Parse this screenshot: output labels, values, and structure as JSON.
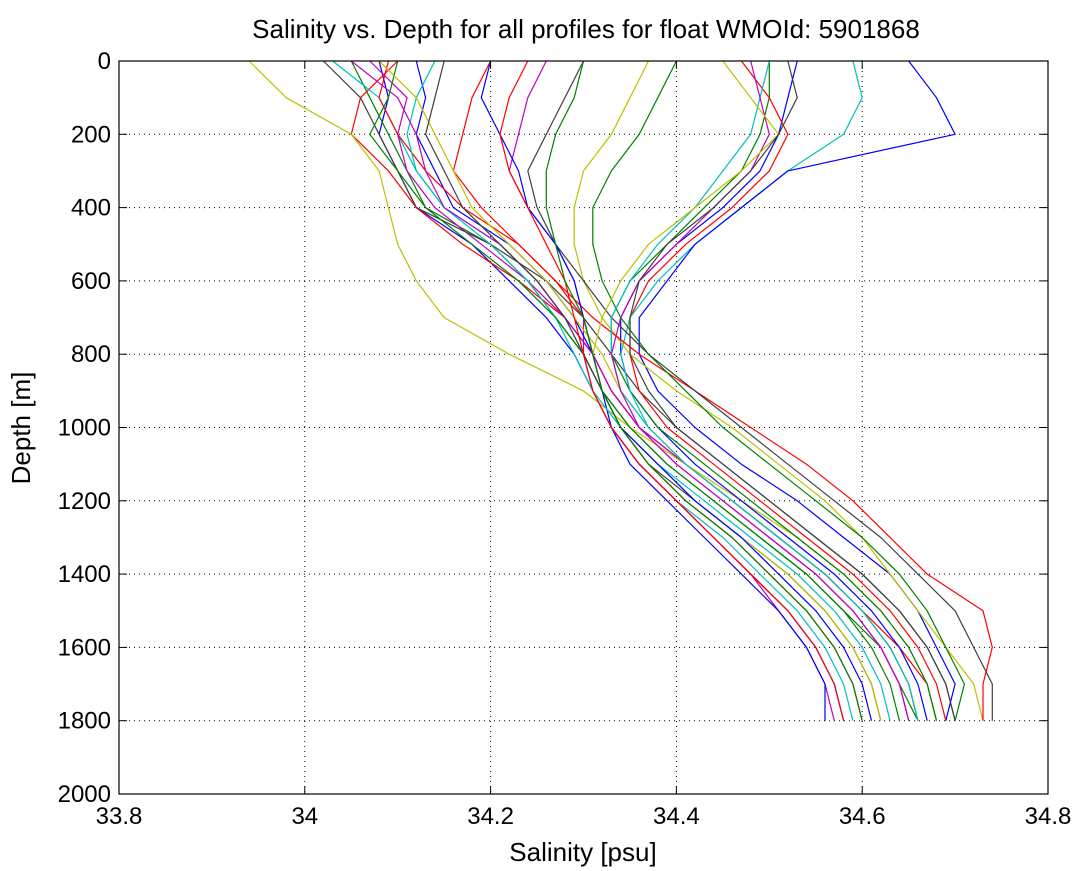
{
  "chart_data": {
    "type": "line",
    "title": "Salinity vs. Depth for all profiles for float WMOId: 5901868",
    "xlabel": "Salinity [psu]",
    "ylabel": "Depth [m]",
    "xlim": [
      33.8,
      34.8
    ],
    "ylim": [
      0,
      2000
    ],
    "y_reversed": true,
    "grid": true,
    "xticks": [
      33.8,
      34,
      34.2,
      34.4,
      34.6,
      34.8
    ],
    "xtick_labels": [
      "33.8",
      "34",
      "34.2",
      "34.4",
      "34.6",
      "34.8"
    ],
    "yticks": [
      0,
      200,
      400,
      600,
      800,
      1000,
      1200,
      1400,
      1600,
      1800,
      2000
    ],
    "ytick_labels": [
      "0",
      "200",
      "400",
      "600",
      "800",
      "1000",
      "1200",
      "1400",
      "1600",
      "1800",
      "2000"
    ],
    "depth_levels": [
      0,
      100,
      200,
      300,
      400,
      500,
      600,
      700,
      800,
      900,
      1000,
      1100,
      1200,
      1300,
      1400,
      1500,
      1600,
      1700,
      1800
    ],
    "series": [
      {
        "color": "#0000ff",
        "salinity": [
          34.08,
          34.09,
          34.08,
          34.1,
          34.12,
          34.18,
          34.22,
          34.26,
          34.29,
          34.31,
          34.33,
          34.36,
          34.4,
          34.44,
          34.48,
          34.52,
          34.55,
          34.57,
          34.58
        ]
      },
      {
        "color": "#008000",
        "salinity": [
          34.05,
          34.07,
          34.09,
          34.11,
          34.13,
          34.2,
          34.24,
          34.27,
          34.3,
          34.32,
          34.35,
          34.39,
          34.44,
          34.49,
          34.54,
          34.58,
          34.62,
          34.64,
          34.66
        ]
      },
      {
        "color": "#ff0000",
        "salinity": [
          34.1,
          34.06,
          34.05,
          34.09,
          34.12,
          34.17,
          34.23,
          34.28,
          34.31,
          34.33,
          34.36,
          34.41,
          34.46,
          34.51,
          34.56,
          34.6,
          34.64,
          34.67,
          34.68
        ]
      },
      {
        "color": "#00bfbf",
        "salinity": [
          34.03,
          34.08,
          34.1,
          34.12,
          34.15,
          34.21,
          34.25,
          34.28,
          34.3,
          34.31,
          34.33,
          34.36,
          34.4,
          34.45,
          34.49,
          34.53,
          34.56,
          34.58,
          34.59
        ]
      },
      {
        "color": "#bf00bf",
        "salinity": [
          34.07,
          34.11,
          34.1,
          34.11,
          34.14,
          34.19,
          34.24,
          34.28,
          34.31,
          34.33,
          34.36,
          34.4,
          34.45,
          34.5,
          34.55,
          34.59,
          34.62,
          34.64,
          34.65
        ]
      },
      {
        "color": "#bfbf00",
        "salinity": [
          33.94,
          33.98,
          34.05,
          34.08,
          34.09,
          34.1,
          34.12,
          34.15,
          34.22,
          34.3,
          34.35,
          34.41,
          34.47,
          34.53,
          34.58,
          34.62,
          34.65,
          34.67,
          34.68
        ]
      },
      {
        "color": "#404040",
        "salinity": [
          34.02,
          34.06,
          34.08,
          34.1,
          34.12,
          34.2,
          34.26,
          34.3,
          34.33,
          34.36,
          34.4,
          34.45,
          34.5,
          34.55,
          34.6,
          34.64,
          34.67,
          34.69,
          34.7
        ]
      },
      {
        "color": "#0000ff",
        "salinity": [
          34.53,
          34.52,
          34.51,
          34.49,
          34.45,
          34.4,
          34.36,
          34.34,
          34.34,
          34.35,
          34.38,
          34.42,
          34.47,
          34.52,
          34.57,
          34.61,
          34.64,
          34.66,
          34.67
        ]
      },
      {
        "color": "#008000",
        "salinity": [
          34.5,
          34.5,
          34.49,
          34.47,
          34.43,
          34.39,
          34.35,
          34.33,
          34.33,
          34.35,
          34.38,
          34.43,
          34.48,
          34.53,
          34.58,
          34.62,
          34.65,
          34.67,
          34.68
        ]
      },
      {
        "color": "#ff0000",
        "salinity": [
          34.47,
          34.5,
          34.52,
          34.5,
          34.46,
          34.41,
          34.37,
          34.35,
          34.35,
          34.36,
          34.39,
          34.44,
          34.49,
          34.54,
          34.59,
          34.63,
          34.66,
          34.68,
          34.69
        ]
      },
      {
        "color": "#00bfbf",
        "salinity": [
          34.59,
          34.6,
          34.58,
          34.52,
          34.47,
          34.42,
          34.38,
          34.35,
          34.34,
          34.35,
          34.37,
          34.41,
          34.46,
          34.51,
          34.56,
          34.6,
          34.63,
          34.65,
          34.66
        ]
      },
      {
        "color": "#0000ff",
        "salinity": [
          34.65,
          34.68,
          34.7,
          34.52,
          34.47,
          34.42,
          34.39,
          34.36,
          34.36,
          34.38,
          34.42,
          34.47,
          34.53,
          34.58,
          34.63,
          34.66,
          34.68,
          34.7,
          34.69
        ]
      },
      {
        "color": "#bf00bf",
        "salinity": [
          34.26,
          34.24,
          34.23,
          34.22,
          34.24,
          34.27,
          34.29,
          34.3,
          34.3,
          34.31,
          34.33,
          34.36,
          34.4,
          34.44,
          34.48,
          34.51,
          34.54,
          34.56,
          34.57
        ]
      },
      {
        "color": "#bfbf00",
        "salinity": [
          34.37,
          34.35,
          34.33,
          34.3,
          34.29,
          34.29,
          34.3,
          34.32,
          34.35,
          34.4,
          34.46,
          34.51,
          34.56,
          34.6,
          34.63,
          34.66,
          34.69,
          34.72,
          34.73
        ]
      },
      {
        "color": "#ff0000",
        "salinity": [
          34.2,
          34.18,
          34.17,
          34.16,
          34.19,
          34.23,
          34.27,
          34.31,
          34.36,
          34.42,
          34.48,
          34.54,
          34.59,
          34.63,
          34.67,
          34.73,
          34.74,
          34.73,
          34.73
        ]
      },
      {
        "color": "#404040",
        "salinity": [
          34.3,
          34.28,
          34.26,
          34.24,
          34.25,
          34.27,
          34.3,
          34.33,
          34.37,
          34.42,
          34.47,
          34.52,
          34.57,
          34.62,
          34.66,
          34.7,
          34.72,
          34.74,
          34.74
        ]
      },
      {
        "color": "#008000",
        "salinity": [
          34.4,
          34.38,
          34.36,
          34.33,
          34.31,
          34.31,
          34.32,
          34.34,
          34.37,
          34.41,
          34.45,
          34.5,
          34.55,
          34.6,
          34.64,
          34.67,
          34.69,
          34.71,
          34.7
        ]
      },
      {
        "color": "#0000ff",
        "salinity": [
          34.12,
          34.13,
          34.12,
          34.14,
          34.16,
          34.22,
          34.26,
          34.29,
          34.31,
          34.32,
          34.33,
          34.35,
          34.39,
          34.43,
          34.47,
          34.51,
          34.54,
          34.56,
          34.56
        ]
      },
      {
        "color": "#ff0000",
        "salinity": [
          34.09,
          34.08,
          34.1,
          34.13,
          34.17,
          34.23,
          34.27,
          34.3,
          34.31,
          34.32,
          34.34,
          34.37,
          34.41,
          34.46,
          34.5,
          34.54,
          34.57,
          34.59,
          34.6
        ]
      },
      {
        "color": "#00bfbf",
        "salinity": [
          34.14,
          34.12,
          34.11,
          34.12,
          34.15,
          34.2,
          34.24,
          34.27,
          34.29,
          34.31,
          34.34,
          34.38,
          34.43,
          34.48,
          34.53,
          34.57,
          34.6,
          34.62,
          34.63
        ]
      },
      {
        "color": "#bf00bf",
        "salinity": [
          34.05,
          34.1,
          34.12,
          34.13,
          34.15,
          34.21,
          34.25,
          34.28,
          34.31,
          34.33,
          34.36,
          34.41,
          34.46,
          34.51,
          34.56,
          34.6,
          34.63,
          34.65,
          34.66
        ]
      },
      {
        "color": "#008000",
        "salinity": [
          34.1,
          34.09,
          34.07,
          34.1,
          34.13,
          34.18,
          34.23,
          34.27,
          34.3,
          34.32,
          34.35,
          34.39,
          34.44,
          34.49,
          34.54,
          34.58,
          34.61,
          34.63,
          34.64
        ]
      },
      {
        "color": "#bfbf00",
        "salinity": [
          34.08,
          34.12,
          34.14,
          34.16,
          34.18,
          34.22,
          34.26,
          34.29,
          34.32,
          34.34,
          34.37,
          34.41,
          34.46,
          34.51,
          34.56,
          34.6,
          34.63,
          34.65,
          34.66
        ]
      },
      {
        "color": "#404040",
        "salinity": [
          34.15,
          34.14,
          34.13,
          34.15,
          34.17,
          34.21,
          34.25,
          34.28,
          34.3,
          34.32,
          34.34,
          34.37,
          34.42,
          34.47,
          34.52,
          34.56,
          34.59,
          34.61,
          34.62
        ]
      },
      {
        "color": "#00bfbf",
        "salinity": [
          34.5,
          34.49,
          34.48,
          34.45,
          34.42,
          34.38,
          34.35,
          34.33,
          34.33,
          34.34,
          34.37,
          34.41,
          34.46,
          34.51,
          34.56,
          34.6,
          34.63,
          34.65,
          34.66
        ]
      },
      {
        "color": "#bf00bf",
        "salinity": [
          34.48,
          34.49,
          34.5,
          34.48,
          34.44,
          34.4,
          34.36,
          34.34,
          34.33,
          34.34,
          34.36,
          34.4,
          34.45,
          34.5,
          34.55,
          34.59,
          34.62,
          34.64,
          34.65
        ]
      },
      {
        "color": "#bfbf00",
        "salinity": [
          34.45,
          34.48,
          34.51,
          34.47,
          34.42,
          34.37,
          34.34,
          34.32,
          34.31,
          34.32,
          34.34,
          34.38,
          34.42,
          34.47,
          34.52,
          34.56,
          34.59,
          34.61,
          34.62
        ]
      },
      {
        "color": "#404040",
        "salinity": [
          34.52,
          34.53,
          34.51,
          34.48,
          34.44,
          34.39,
          34.36,
          34.35,
          34.35,
          34.37,
          34.4,
          34.45,
          34.5,
          34.55,
          34.6,
          34.64,
          34.67,
          34.69,
          34.7
        ]
      },
      {
        "color": "#0000ff",
        "salinity": [
          34.2,
          34.19,
          34.21,
          34.23,
          34.24,
          34.27,
          34.29,
          34.3,
          34.31,
          34.32,
          34.34,
          34.38,
          34.42,
          34.47,
          34.51,
          34.55,
          34.58,
          34.6,
          34.61
        ]
      },
      {
        "color": "#ff0000",
        "salinity": [
          34.24,
          34.22,
          34.21,
          34.22,
          34.24,
          34.26,
          34.28,
          34.29,
          34.3,
          34.31,
          34.33,
          34.36,
          34.4,
          34.44,
          34.48,
          34.52,
          34.55,
          34.57,
          34.58
        ]
      },
      {
        "color": "#008000",
        "salinity": [
          34.3,
          34.29,
          34.27,
          34.26,
          34.26,
          34.27,
          34.28,
          34.3,
          34.31,
          34.32,
          34.34,
          34.37,
          34.41,
          34.46,
          34.5,
          34.54,
          34.57,
          34.59,
          34.6
        ]
      }
    ]
  }
}
